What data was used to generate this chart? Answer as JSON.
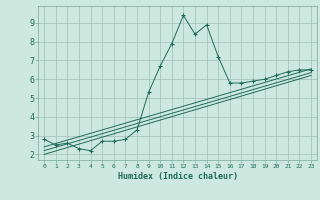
{
  "xlabel": "Humidex (Indice chaleur)",
  "bg_color": "#cde8df",
  "grid_color": "#9fbfb8",
  "line_color": "#1e6b5a",
  "xlim": [
    -0.5,
    23.5
  ],
  "ylim": [
    1.7,
    9.9
  ],
  "yticks": [
    2,
    3,
    4,
    5,
    6,
    7,
    8,
    9
  ],
  "series_main": {
    "x": [
      0,
      1,
      2,
      3,
      4,
      5,
      6,
      7,
      8,
      9,
      10,
      11,
      12,
      13,
      14,
      15,
      16,
      17,
      18,
      19,
      20,
      21,
      22,
      23
    ],
    "y": [
      2.8,
      2.5,
      2.6,
      2.3,
      2.2,
      2.7,
      2.7,
      2.8,
      3.3,
      5.3,
      6.7,
      7.9,
      9.4,
      8.4,
      8.9,
      7.2,
      5.8,
      5.8,
      5.9,
      6.0,
      6.2,
      6.4,
      6.5,
      6.5
    ]
  },
  "series_trends": [
    {
      "x": [
        0,
        23
      ],
      "y": [
        2.4,
        6.55
      ]
    },
    {
      "x": [
        0,
        23
      ],
      "y": [
        2.2,
        6.35
      ]
    },
    {
      "x": [
        0,
        23
      ],
      "y": [
        2.0,
        6.2
      ]
    }
  ]
}
